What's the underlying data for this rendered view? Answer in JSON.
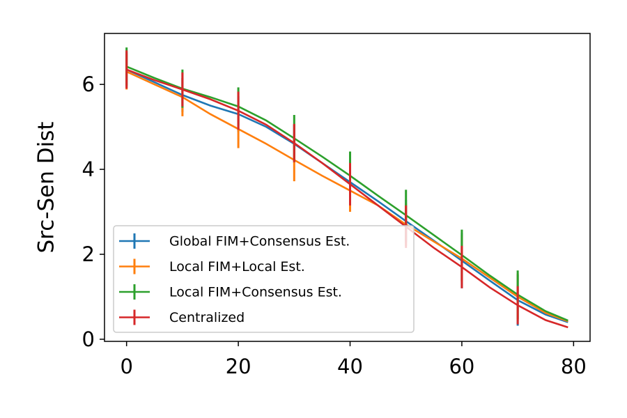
{
  "chart_data": {
    "type": "line",
    "y_label": "Src-Sen Dist",
    "x": [
      0,
      5,
      10,
      15,
      20,
      25,
      30,
      35,
      40,
      45,
      50,
      55,
      60,
      65,
      70,
      75,
      79
    ],
    "series": [
      {
        "name": "Global FIM+Consensus Est.",
        "color": "#1f77b4",
        "values": [
          6.35,
          6.05,
          5.75,
          5.5,
          5.3,
          5.0,
          4.6,
          4.15,
          3.7,
          3.25,
          2.78,
          2.32,
          1.85,
          1.38,
          0.92,
          0.58,
          0.4
        ],
        "errors": [
          0.42,
          null,
          0.4,
          null,
          0.42,
          null,
          0.45,
          null,
          0.5,
          null,
          0.5,
          null,
          0.65,
          null,
          0.6,
          null,
          null
        ]
      },
      {
        "name": "Local FIM+Local Est.",
        "color": "#ff7f0e",
        "values": [
          6.3,
          6.0,
          5.7,
          5.3,
          4.95,
          4.6,
          4.22,
          3.85,
          3.5,
          3.15,
          2.7,
          2.3,
          1.9,
          1.45,
          1.0,
          0.62,
          0.42
        ],
        "errors": [
          0.42,
          null,
          0.45,
          null,
          0.45,
          null,
          0.5,
          null,
          0.5,
          null,
          0.5,
          null,
          0.55,
          null,
          0.55,
          null,
          null
        ]
      },
      {
        "name": "Local FIM+Consensus Est.",
        "color": "#2ca02c",
        "values": [
          6.42,
          6.15,
          5.9,
          5.7,
          5.48,
          5.15,
          4.73,
          4.3,
          3.85,
          3.38,
          2.92,
          2.45,
          1.98,
          1.5,
          1.05,
          0.66,
          0.44
        ],
        "errors": [
          0.45,
          null,
          0.45,
          null,
          0.45,
          null,
          0.55,
          null,
          0.57,
          null,
          0.6,
          null,
          0.6,
          null,
          0.57,
          null,
          null
        ]
      },
      {
        "name": "Centralized",
        "color": "#d62728",
        "values": [
          6.35,
          6.1,
          5.88,
          5.65,
          5.38,
          5.05,
          4.62,
          4.15,
          3.65,
          3.15,
          2.65,
          2.15,
          1.7,
          1.22,
          0.8,
          0.45,
          0.28
        ],
        "errors": [
          0.45,
          null,
          0.4,
          null,
          0.45,
          null,
          0.45,
          null,
          0.5,
          null,
          0.5,
          null,
          0.5,
          null,
          0.45,
          null,
          null
        ]
      }
    ],
    "xlim": [
      -3.95,
      82.95
    ],
    "ylim": [
      -0.05,
      7.2
    ],
    "xticks": [
      0,
      20,
      40,
      60,
      80
    ],
    "yticks": [
      0,
      2,
      4,
      6
    ],
    "legend": "lower left"
  }
}
